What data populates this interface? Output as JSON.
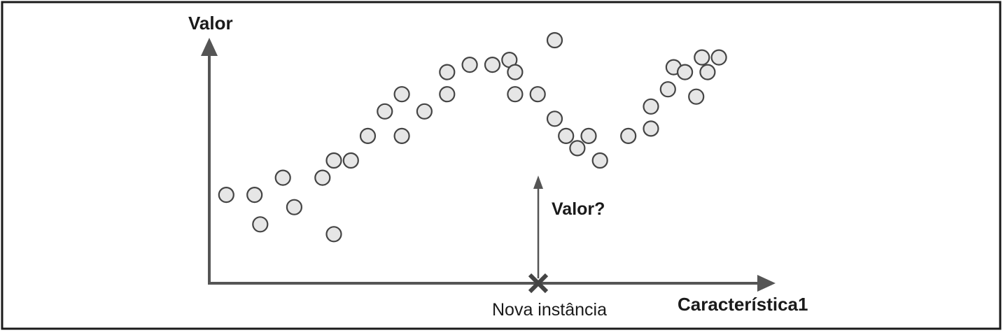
{
  "labels": {
    "y_axis": "Valor",
    "x_axis": "Característica1",
    "query": "Valor?",
    "new_instance": "Nova instância"
  },
  "colors": {
    "frame": "#1a1a1a",
    "axis": "#555555",
    "point_fill": "#e6e6e6",
    "point_stroke": "#444444",
    "marker": "#444444",
    "text": "#1a1a1a"
  },
  "chart_data": {
    "type": "scatter",
    "x_range": [
      0,
      100
    ],
    "y_range": [
      0,
      100
    ],
    "points": [
      {
        "x": 3,
        "y": 36
      },
      {
        "x": 8,
        "y": 36
      },
      {
        "x": 9,
        "y": 24
      },
      {
        "x": 13,
        "y": 43
      },
      {
        "x": 15,
        "y": 31
      },
      {
        "x": 20,
        "y": 43
      },
      {
        "x": 22,
        "y": 20
      },
      {
        "x": 22,
        "y": 50
      },
      {
        "x": 25,
        "y": 50
      },
      {
        "x": 28,
        "y": 60
      },
      {
        "x": 31,
        "y": 70
      },
      {
        "x": 34,
        "y": 60
      },
      {
        "x": 34,
        "y": 77
      },
      {
        "x": 38,
        "y": 70
      },
      {
        "x": 42,
        "y": 86
      },
      {
        "x": 42,
        "y": 77
      },
      {
        "x": 46,
        "y": 89
      },
      {
        "x": 50,
        "y": 89
      },
      {
        "x": 53,
        "y": 91
      },
      {
        "x": 54,
        "y": 86
      },
      {
        "x": 54,
        "y": 77
      },
      {
        "x": 58,
        "y": 77
      },
      {
        "x": 61,
        "y": 67
      },
      {
        "x": 61,
        "y": 99
      },
      {
        "x": 63,
        "y": 60
      },
      {
        "x": 65,
        "y": 55
      },
      {
        "x": 67,
        "y": 60
      },
      {
        "x": 69,
        "y": 50
      },
      {
        "x": 74,
        "y": 60
      },
      {
        "x": 78,
        "y": 72
      },
      {
        "x": 78,
        "y": 63
      },
      {
        "x": 81,
        "y": 79
      },
      {
        "x": 82,
        "y": 88
      },
      {
        "x": 84,
        "y": 86
      },
      {
        "x": 86,
        "y": 76
      },
      {
        "x": 87,
        "y": 92
      },
      {
        "x": 88,
        "y": 86
      },
      {
        "x": 90,
        "y": 92
      }
    ],
    "new_instance_x": 60
  }
}
